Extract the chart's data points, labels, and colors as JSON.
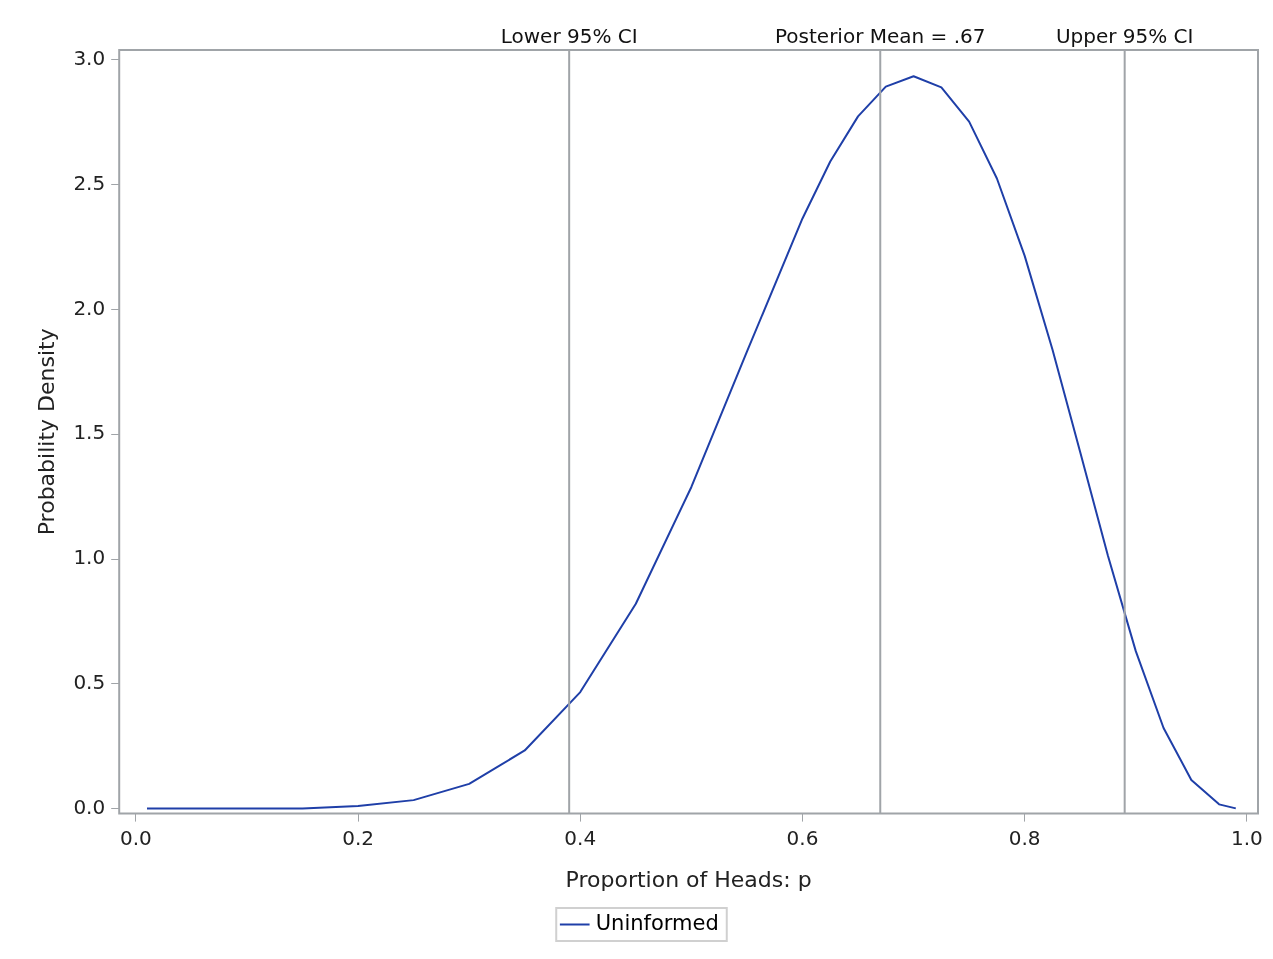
{
  "chart_data": {
    "type": "line",
    "xlabel": "Proportion of Heads: p",
    "ylabel": "Probability Density",
    "x": [
      0.01,
      0.1,
      0.15,
      0.2,
      0.25,
      0.3,
      0.35,
      0.4,
      0.45,
      0.5,
      0.55,
      0.6,
      0.625,
      0.65,
      0.675,
      0.7,
      0.725,
      0.75,
      0.775,
      0.8,
      0.825,
      0.85,
      0.875,
      0.9,
      0.925,
      0.95,
      0.975,
      0.99
    ],
    "series": [
      {
        "name": "Uninformed",
        "color": "#1f3fa8",
        "values": [
          0,
          0,
          0,
          0.01,
          0.034,
          0.099,
          0.233,
          0.467,
          0.821,
          1.289,
          1.831,
          2.365,
          2.593,
          2.774,
          2.893,
          2.935,
          2.89,
          2.753,
          2.525,
          2.215,
          1.84,
          1.428,
          1.012,
          0.631,
          0.323,
          0.115,
          0.017,
          0.001
        ]
      }
    ],
    "xlim": [
      -0.015,
      1.01
    ],
    "ylim": [
      -0.02,
      3.04
    ],
    "xticks": [
      {
        "value": 0,
        "label": "0.0"
      },
      {
        "value": 0.2,
        "label": "0.2"
      },
      {
        "value": 0.4,
        "label": "0.4"
      },
      {
        "value": 0.6,
        "label": "0.6"
      },
      {
        "value": 0.8,
        "label": "0.8"
      },
      {
        "value": 1,
        "label": "1.0"
      }
    ],
    "yticks": [
      {
        "value": 0,
        "label": "0.0"
      },
      {
        "value": 0.5,
        "label": "0.5"
      },
      {
        "value": 1,
        "label": "1.0"
      },
      {
        "value": 1.5,
        "label": "1.5"
      },
      {
        "value": 2,
        "label": "2.0"
      },
      {
        "value": 2.5,
        "label": "2.5"
      },
      {
        "value": 3,
        "label": "3.0"
      }
    ],
    "ref_lines": [
      {
        "axis": "x",
        "value": 0.39,
        "label": "Lower 95% CI",
        "color": "#a0a4a8"
      },
      {
        "axis": "x",
        "value": 0.67,
        "label": "Posterior Mean = .67",
        "color": "#a0a4a8"
      },
      {
        "axis": "x",
        "value": 0.89,
        "label": "Upper 95% CI",
        "color": "#a0a4a8"
      }
    ],
    "legend": "bottom",
    "marker": "none",
    "line_style": "solid",
    "grid": false
  }
}
